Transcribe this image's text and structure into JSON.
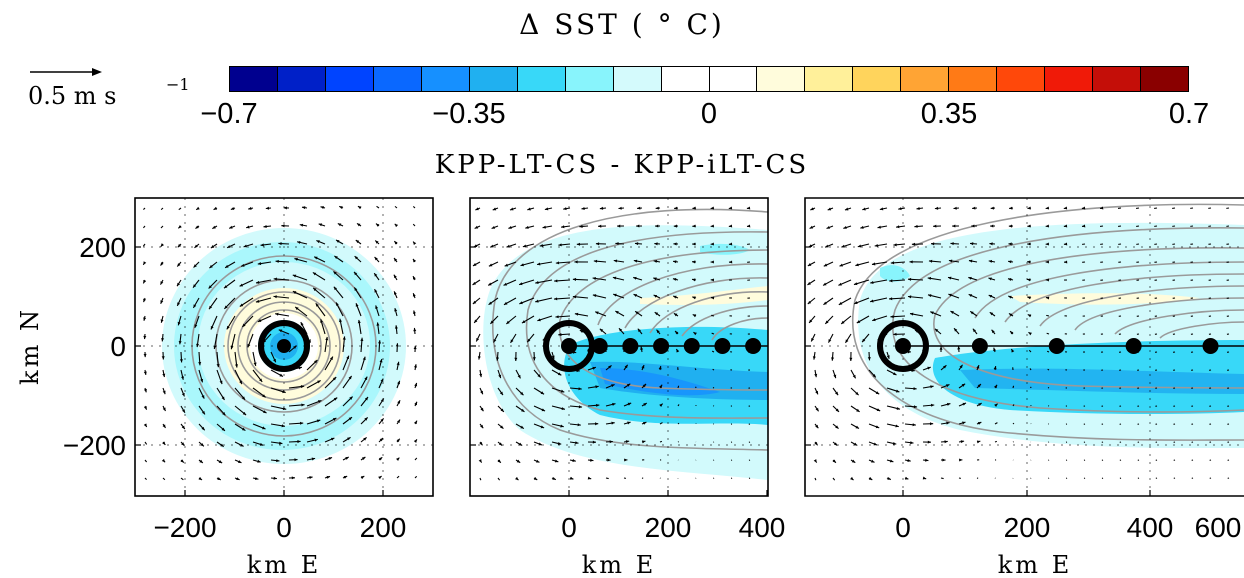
{
  "colorbar": {
    "title": "Δ SST ( ° C)",
    "ticks": [
      "−0.7",
      "−0.35",
      "0",
      "0.35",
      "0.7"
    ],
    "range": [
      -0.7,
      0.7
    ],
    "colors": [
      "#00008f",
      "#0020c8",
      "#0044ff",
      "#0a68ff",
      "#1690ff",
      "#20b0f0",
      "#38d8f8",
      "#88f4fc",
      "#d4fafc",
      "#ffffff",
      "#ffffff",
      "#fffcdc",
      "#fff09a",
      "#ffd45c",
      "#ffa434",
      "#ff7a16",
      "#ff480a",
      "#f01a08",
      "#c40e08",
      "#8a0000"
    ]
  },
  "scale_arrow": {
    "label": "0.5  m  s",
    "exponent": "−1"
  },
  "figure_title": "KPP-LT-CS - KPP-iLT-CS",
  "chart_data": [
    {
      "type": "contour",
      "panel": "left",
      "xlabel": "km E",
      "ylabel": "km N",
      "xticks": [
        "−200",
        "0",
        "200"
      ],
      "yticks": [
        "200",
        "0",
        "−200"
      ],
      "xlim": [
        -300,
        300
      ],
      "ylim": [
        -300,
        300
      ],
      "storm_center": [
        0,
        0
      ],
      "track_dots": [
        [
          0,
          0
        ]
      ],
      "grid": true
    },
    {
      "type": "contour",
      "panel": "middle",
      "xlabel": "km E",
      "xticks": [
        "0",
        "200",
        "400"
      ],
      "xlim": [
        -200,
        400
      ],
      "ylim": [
        -300,
        300
      ],
      "storm_center": [
        0,
        0
      ],
      "track_dots": [
        [
          0,
          0
        ],
        [
          62,
          0
        ],
        [
          124,
          0
        ],
        [
          186,
          0
        ],
        [
          248,
          0
        ],
        [
          310,
          0
        ],
        [
          372,
          0
        ]
      ],
      "grid": true
    },
    {
      "type": "contour",
      "panel": "right",
      "xlabel": "km E",
      "xticks": [
        "0",
        "200",
        "400",
        "600"
      ],
      "xlim": [
        -200,
        700
      ],
      "ylim": [
        -300,
        300
      ],
      "storm_center": [
        0,
        0
      ],
      "track_dots": [
        [
          0,
          0
        ],
        [
          124,
          0
        ],
        [
          248,
          0
        ],
        [
          372,
          0
        ],
        [
          496,
          0
        ],
        [
          620,
          0
        ]
      ],
      "grid": true
    }
  ]
}
